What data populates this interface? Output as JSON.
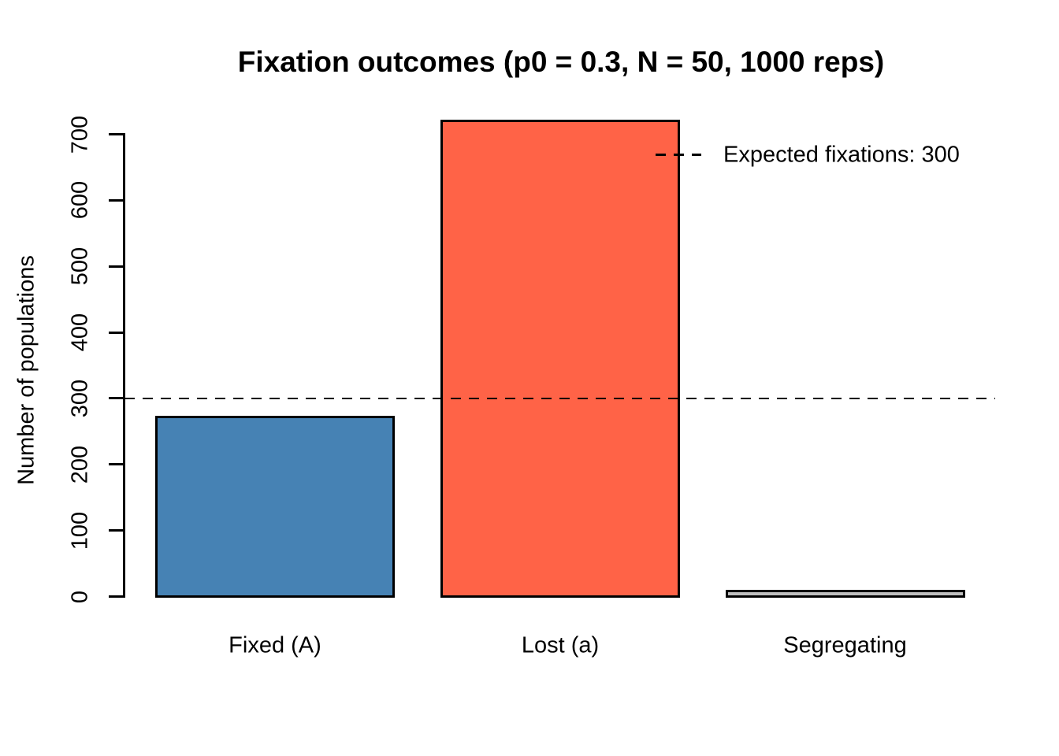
{
  "chart_data": {
    "type": "bar",
    "title": "Fixation outcomes (p0 = 0.3, N = 50, 1000 reps)",
    "ylabel": "Number of populations",
    "xlabel": "",
    "categories": [
      "Fixed (A)",
      "Lost (a)",
      "Segregating"
    ],
    "values": [
      272,
      720,
      8
    ],
    "bar_colors": [
      "#4682B4",
      "#FF6347",
      "#BEBEBE"
    ],
    "bar_border_color": "#000000",
    "yticks": [
      0,
      100,
      200,
      300,
      400,
      500,
      600,
      700
    ],
    "ylim": [
      0,
      720
    ],
    "grid": false,
    "background_color": "#FFFFFF",
    "reference_line": {
      "value": 300,
      "style": "dashed",
      "color": "#000000"
    },
    "legend": {
      "position": "topright",
      "box": false,
      "entries": [
        {
          "label": "Expected fixations: 300",
          "line_style": "dashed",
          "line_color": "#000000"
        }
      ]
    }
  }
}
